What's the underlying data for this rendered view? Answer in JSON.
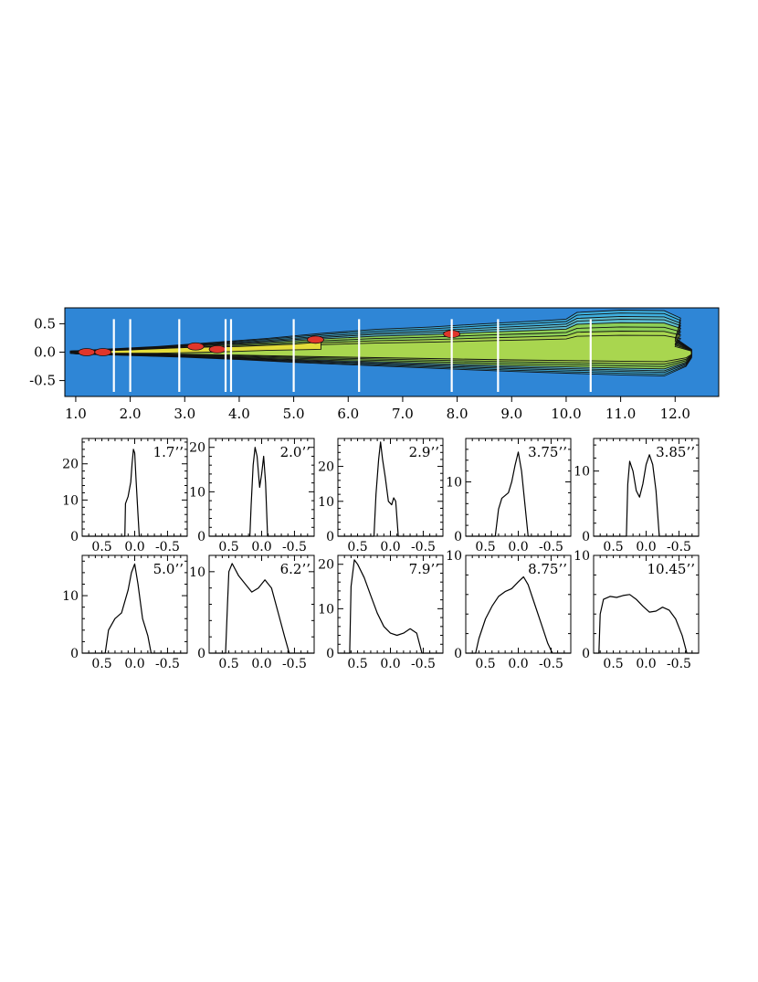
{
  "colors": {
    "background": "#2f86d6",
    "jet_outer": "#3fb0e0",
    "jet_mid": "#8dcf57",
    "jet_high": "#e3dc3a",
    "jet_peak": "#e0362b",
    "slice": "#ffffff"
  },
  "chart_data": [
    {
      "type": "heatmap",
      "xlim": [
        0.8,
        12.8
      ],
      "ylim": [
        -0.78,
        0.78
      ],
      "x_ticks": [
        1.0,
        2.0,
        3.0,
        4.0,
        5.0,
        6.0,
        7.0,
        8.0,
        9.0,
        10.0,
        11.0,
        12.0
      ],
      "x_tick_labels": [
        "1.0",
        "2.0",
        "3.0",
        "4.0",
        "5.0",
        "6.0",
        "7.0",
        "8.0",
        "9.0",
        "10.0",
        "11.0",
        "12.0"
      ],
      "y_ticks": [
        0.5,
        0.0,
        -0.5
      ],
      "y_tick_labels": [
        "0.5",
        "0.0",
        "-0.5"
      ],
      "slice_positions": [
        1.7,
        2.0,
        2.9,
        3.75,
        3.85,
        5.0,
        6.2,
        7.9,
        8.75,
        10.45
      ],
      "jet_upper_edge": [
        [
          0.9,
          0.02
        ],
        [
          1.5,
          0.05
        ],
        [
          2.5,
          0.1
        ],
        [
          3.5,
          0.17
        ],
        [
          4.5,
          0.24
        ],
        [
          5.5,
          0.33
        ],
        [
          6.5,
          0.4
        ],
        [
          7.5,
          0.44
        ],
        [
          8.5,
          0.5
        ],
        [
          9.5,
          0.55
        ],
        [
          10.0,
          0.58
        ],
        [
          10.2,
          0.7
        ],
        [
          11.0,
          0.74
        ],
        [
          11.8,
          0.73
        ],
        [
          12.1,
          0.6
        ],
        [
          12.0,
          0.25
        ],
        [
          12.3,
          0.05
        ]
      ],
      "jet_lower_edge": [
        [
          12.3,
          -0.1
        ],
        [
          12.2,
          -0.25
        ],
        [
          11.8,
          -0.42
        ],
        [
          11.0,
          -0.4
        ],
        [
          10.0,
          -0.37
        ],
        [
          9.0,
          -0.34
        ],
        [
          8.0,
          -0.3
        ],
        [
          7.0,
          -0.26
        ],
        [
          6.0,
          -0.22
        ],
        [
          5.0,
          -0.18
        ],
        [
          4.0,
          -0.13
        ],
        [
          3.0,
          -0.09
        ],
        [
          2.0,
          -0.06
        ],
        [
          1.0,
          -0.03
        ],
        [
          0.9,
          -0.02
        ]
      ],
      "peak_regions": [
        [
          1.2,
          0.0
        ],
        [
          1.5,
          0.0
        ],
        [
          3.2,
          0.1
        ],
        [
          3.6,
          0.05
        ],
        [
          5.4,
          0.22
        ],
        [
          7.9,
          0.32
        ]
      ]
    },
    {
      "type": "line",
      "panel": "1.7\"",
      "label": "1.7’’",
      "xlim": [
        0.8,
        -0.8
      ],
      "ylim": [
        0,
        27
      ],
      "y_ticks": [
        0,
        10,
        20
      ],
      "x_ticks": [
        0.5,
        0.0,
        -0.5
      ],
      "x": [
        0.8,
        0.15,
        0.14,
        0.1,
        0.06,
        0.04,
        0.02,
        0.0,
        -0.02,
        -0.05,
        -0.07,
        -0.8
      ],
      "y": [
        0,
        0,
        9,
        11,
        15,
        20,
        24,
        23,
        16,
        6,
        0,
        0
      ]
    },
    {
      "type": "line",
      "panel": "2.0\"",
      "label": "2.0’’",
      "xlim": [
        0.8,
        -0.8
      ],
      "ylim": [
        0,
        22
      ],
      "y_ticks": [
        0,
        10,
        20
      ],
      "x_ticks": [
        0.5,
        0.0,
        -0.5
      ],
      "x": [
        0.8,
        0.18,
        0.16,
        0.13,
        0.1,
        0.07,
        0.03,
        0.0,
        -0.03,
        -0.06,
        -0.09,
        -0.8
      ],
      "y": [
        0,
        0,
        7,
        16,
        20,
        18,
        11,
        14,
        18,
        12,
        0,
        0
      ]
    },
    {
      "type": "line",
      "panel": "2.9\"",
      "label": "2.9’’",
      "xlim": [
        0.8,
        -0.8
      ],
      "ylim": [
        0,
        28
      ],
      "y_ticks": [
        0,
        10,
        20
      ],
      "x_ticks": [
        0.5,
        0.0,
        -0.5
      ],
      "x": [
        0.8,
        0.25,
        0.22,
        0.18,
        0.15,
        0.12,
        0.08,
        0.03,
        -0.02,
        -0.05,
        -0.08,
        -0.12,
        -0.8
      ],
      "y": [
        0,
        0,
        12,
        22,
        27,
        22,
        17,
        10,
        9,
        11,
        10,
        0,
        0
      ]
    },
    {
      "type": "line",
      "panel": "3.75\"",
      "label": "3.75’’",
      "xlim": [
        0.8,
        -0.8
      ],
      "ylim": [
        0,
        18
      ],
      "y_ticks": [
        0,
        10
      ],
      "x_ticks": [
        0.5,
        0.0,
        -0.5
      ],
      "x": [
        0.8,
        0.35,
        0.3,
        0.25,
        0.2,
        0.15,
        0.1,
        0.05,
        0.0,
        -0.05,
        -0.1,
        -0.15,
        -0.8
      ],
      "y": [
        0,
        0,
        5,
        7,
        7.5,
        8,
        10,
        13,
        15.5,
        12,
        6,
        0,
        0
      ]
    },
    {
      "type": "line",
      "panel": "3.85\"",
      "label": "3.85’’",
      "xlim": [
        0.8,
        -0.8
      ],
      "ylim": [
        0,
        15
      ],
      "y_ticks": [
        0,
        10
      ],
      "x_ticks": [
        0.5,
        0.0,
        -0.5
      ],
      "x": [
        0.8,
        0.3,
        0.28,
        0.25,
        0.2,
        0.15,
        0.1,
        0.05,
        0.0,
        -0.05,
        -0.1,
        -0.15,
        -0.2,
        -0.8
      ],
      "y": [
        0,
        0,
        8,
        11.5,
        10,
        7,
        6,
        8,
        11,
        12.5,
        11,
        7,
        0,
        0
      ]
    },
    {
      "type": "line",
      "panel": "5.0\"",
      "label": "5.0’’",
      "xlim": [
        0.8,
        -0.8
      ],
      "ylim": [
        0,
        17
      ],
      "y_ticks": [
        0,
        10
      ],
      "x_ticks": [
        0.5,
        0.0,
        -0.5
      ],
      "x": [
        0.8,
        0.45,
        0.4,
        0.3,
        0.2,
        0.1,
        0.05,
        0.0,
        -0.05,
        -0.12,
        -0.2,
        -0.25,
        -0.8
      ],
      "y": [
        0,
        0,
        4,
        6,
        7,
        11,
        14,
        15.5,
        12,
        6,
        3,
        0,
        0
      ]
    },
    {
      "type": "line",
      "panel": "6.2\"",
      "label": "6.2’’",
      "xlim": [
        0.8,
        -0.8
      ],
      "ylim": [
        0,
        12
      ],
      "y_ticks": [
        0,
        10
      ],
      "x_ticks": [
        0.5,
        0.0,
        -0.5
      ],
      "x": [
        0.8,
        0.55,
        0.52,
        0.5,
        0.45,
        0.35,
        0.25,
        0.15,
        0.05,
        -0.05,
        -0.15,
        -0.25,
        -0.35,
        -0.42,
        -0.8
      ],
      "y": [
        0,
        0,
        6,
        10,
        11,
        9.5,
        8.5,
        7.5,
        8,
        9,
        8,
        5,
        2,
        0,
        0
      ]
    },
    {
      "type": "line",
      "panel": "7.9\"",
      "label": "7.9’’",
      "xlim": [
        0.8,
        -0.8
      ],
      "ylim": [
        0,
        22
      ],
      "y_ticks": [
        0,
        10,
        20
      ],
      "x_ticks": [
        0.5,
        0.0,
        -0.5
      ],
      "x": [
        0.8,
        0.62,
        0.6,
        0.55,
        0.5,
        0.4,
        0.3,
        0.2,
        0.1,
        0.0,
        -0.1,
        -0.2,
        -0.3,
        -0.4,
        -0.48,
        -0.8
      ],
      "y": [
        0,
        0,
        15,
        21,
        20,
        17,
        13,
        9,
        6,
        4.5,
        4,
        4.5,
        5.5,
        4.5,
        0,
        0
      ]
    },
    {
      "type": "line",
      "panel": "8.75\"",
      "label": "8.75’’",
      "xlim": [
        0.8,
        -0.8
      ],
      "ylim": [
        0,
        10
      ],
      "y_ticks": [
        0,
        10
      ],
      "x_ticks": [
        0.5,
        0.0,
        -0.5
      ],
      "x": [
        0.8,
        0.65,
        0.6,
        0.5,
        0.4,
        0.3,
        0.2,
        0.1,
        0.0,
        -0.08,
        -0.15,
        -0.25,
        -0.35,
        -0.45,
        -0.52,
        -0.8
      ],
      "y": [
        0,
        0,
        1.5,
        3.5,
        4.8,
        5.8,
        6.3,
        6.6,
        7.3,
        7.8,
        7.0,
        5.0,
        3.0,
        1.0,
        0,
        0
      ]
    },
    {
      "type": "line",
      "panel": "10.45\"",
      "label": "10.45’’",
      "xlim": [
        0.8,
        -0.8
      ],
      "ylim": [
        0,
        10
      ],
      "y_ticks": [
        0,
        10
      ],
      "x_ticks": [
        0.5,
        0.0,
        -0.5
      ],
      "x": [
        0.8,
        0.72,
        0.7,
        0.65,
        0.55,
        0.45,
        0.35,
        0.25,
        0.15,
        0.05,
        -0.05,
        -0.15,
        -0.25,
        -0.35,
        -0.45,
        -0.55,
        -0.62,
        -0.8
      ],
      "y": [
        0,
        0,
        4,
        5.5,
        5.8,
        5.7,
        5.9,
        6.0,
        5.5,
        4.8,
        4.2,
        4.3,
        4.7,
        4.4,
        3.5,
        1.8,
        0,
        0
      ]
    }
  ]
}
